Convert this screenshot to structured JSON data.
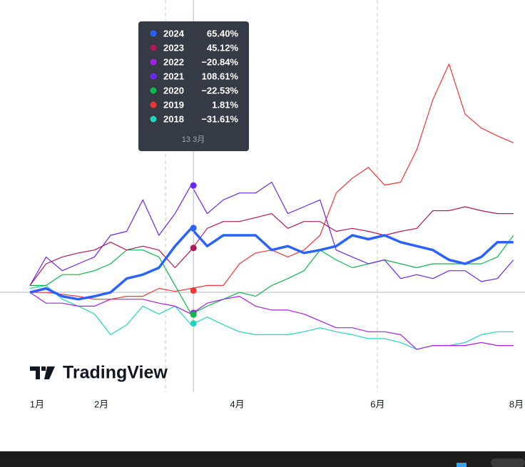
{
  "chart_data": {
    "type": "line",
    "watermark": "TradingView",
    "x": [
      0,
      7,
      14,
      21,
      28,
      35,
      42,
      49,
      56,
      63,
      70,
      77,
      84,
      91,
      98,
      105,
      112,
      119,
      126,
      133,
      140,
      147,
      154,
      161,
      168,
      175,
      182,
      189,
      196,
      203,
      210
    ],
    "xlim": [
      0,
      215
    ],
    "xticks": [
      {
        "value": 0,
        "label": "1月"
      },
      {
        "value": 31,
        "label": "2月"
      },
      {
        "value": 90,
        "label": "4月"
      },
      {
        "value": 151,
        "label": "6月"
      },
      {
        "value": 212,
        "label": "8月"
      }
    ],
    "ylim": [
      -101.4,
      297.1
    ],
    "series": [
      {
        "name": "2024",
        "color": "#2962ff",
        "values": [
          0,
          4,
          -4,
          -7,
          -4,
          0,
          14,
          18,
          25,
          47,
          65,
          47,
          58,
          58,
          58,
          43,
          47,
          40,
          43,
          47,
          58,
          54,
          58,
          51,
          47,
          43,
          33,
          29,
          36,
          51,
          51
        ]
      },
      {
        "name": "2023",
        "color": "#b0185a",
        "values": [
          7,
          29,
          36,
          40,
          43,
          51,
          43,
          47,
          43,
          25,
          43,
          65,
          72,
          72,
          76,
          80,
          65,
          72,
          72,
          62,
          65,
          62,
          58,
          62,
          65,
          83,
          83,
          87,
          83,
          80,
          80
        ]
      },
      {
        "name": "2022",
        "color": "#a51ee6",
        "values": [
          0,
          -11,
          -11,
          -14,
          -14,
          -7,
          -7,
          -7,
          -11,
          -14,
          -22,
          -11,
          -7,
          -4,
          -14,
          -18,
          -18,
          -22,
          -29,
          -36,
          -36,
          -40,
          -40,
          -43,
          -58,
          -54,
          -54,
          -54,
          -51,
          -54,
          -54
        ]
      },
      {
        "name": "2021",
        "color": "#6a26f5",
        "values": [
          7,
          36,
          22,
          29,
          36,
          58,
          62,
          94,
          58,
          80,
          109,
          80,
          94,
          101,
          101,
          112,
          80,
          87,
          94,
          43,
          36,
          29,
          33,
          14,
          18,
          14,
          22,
          22,
          11,
          14,
          33
        ]
      },
      {
        "name": "2020",
        "color": "#0cb84a",
        "values": [
          7,
          7,
          18,
          18,
          22,
          29,
          43,
          43,
          36,
          7,
          -22,
          -14,
          -7,
          0,
          -4,
          7,
          14,
          22,
          43,
          33,
          25,
          29,
          33,
          29,
          25,
          29,
          29,
          29,
          29,
          36,
          58
        ]
      },
      {
        "name": "2019",
        "color": "#f23637",
        "values": [
          0,
          0,
          -2,
          -4,
          -7,
          -7,
          -4,
          -4,
          4,
          1,
          4,
          7,
          7,
          29,
          40,
          43,
          36,
          43,
          58,
          101,
          116,
          127,
          109,
          112,
          145,
          196,
          232,
          181,
          167,
          159,
          152
        ]
      },
      {
        "name": "2018",
        "color": "#22d3c0",
        "values": [
          4,
          7,
          -7,
          -14,
          -22,
          -43,
          -33,
          -14,
          -22,
          -14,
          -33,
          -25,
          -33,
          -40,
          -43,
          -43,
          -43,
          -40,
          -36,
          -40,
          -43,
          -47,
          -47,
          -51,
          -58,
          -54,
          -54,
          -51,
          -43,
          -40,
          -40
        ]
      }
    ],
    "tooltip": {
      "label": "13 3月",
      "x": 71,
      "values": [
        65.4,
        45.12,
        -20.84,
        108.61,
        -22.53,
        1.81,
        -31.61
      ],
      "value_labels": [
        "65.40%",
        "45.12%",
        "−20.84%",
        "108.61%",
        "−22.53%",
        "1.81%",
        "−31.61%"
      ]
    }
  }
}
